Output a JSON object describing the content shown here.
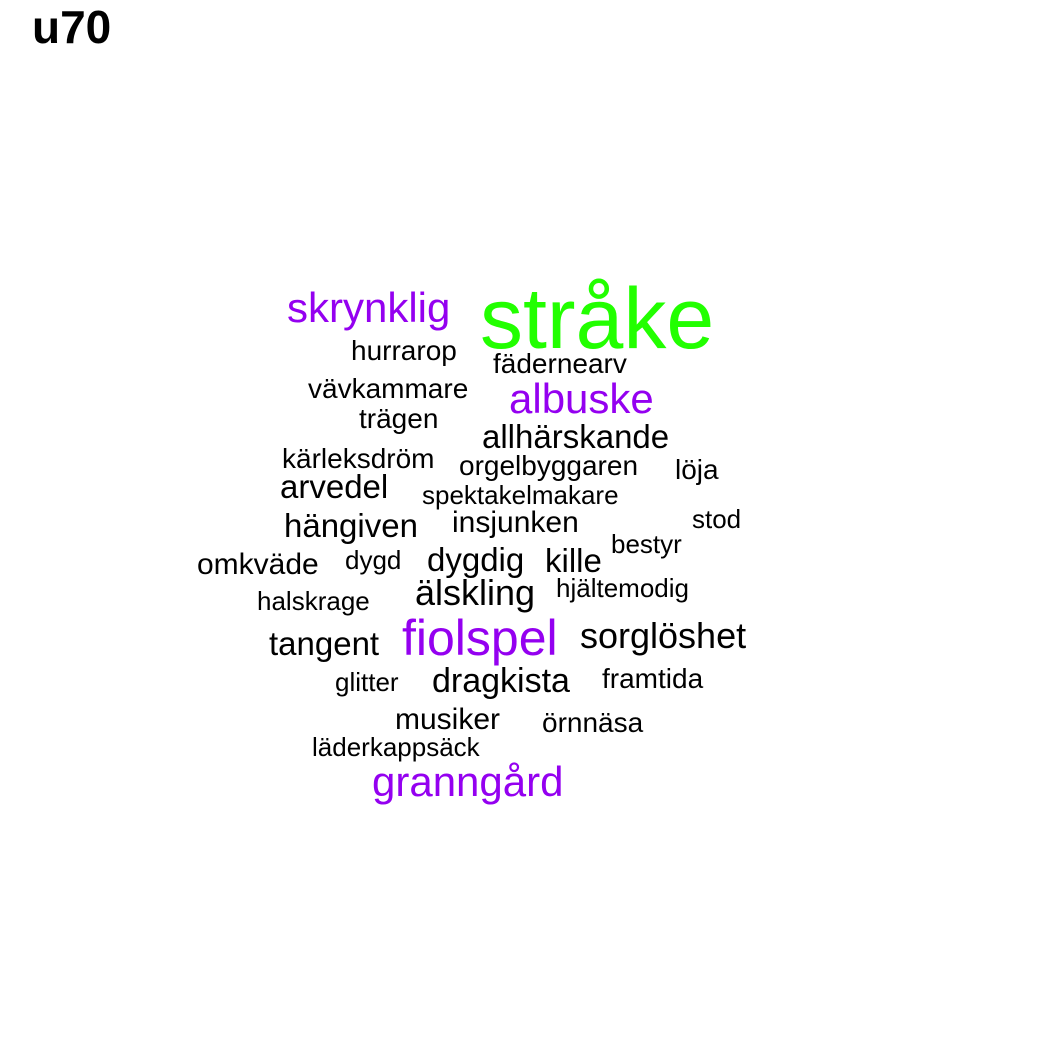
{
  "title": "u70",
  "colors": {
    "green": "#22ff00",
    "purple": "#9400f0",
    "black": "#000000"
  },
  "words": [
    {
      "text": "stråke",
      "color": "green"
    },
    {
      "text": "skrynklig",
      "color": "purple"
    },
    {
      "text": "hurrarop",
      "color": "black"
    },
    {
      "text": "fädernearv",
      "color": "black"
    },
    {
      "text": "vävkammare",
      "color": "black"
    },
    {
      "text": "albuske",
      "color": "purple"
    },
    {
      "text": "trägen",
      "color": "black"
    },
    {
      "text": "allhärskande",
      "color": "black"
    },
    {
      "text": "kärleksdröm",
      "color": "black"
    },
    {
      "text": "orgelbyggaren",
      "color": "black"
    },
    {
      "text": "löja",
      "color": "black"
    },
    {
      "text": "arvedel",
      "color": "black"
    },
    {
      "text": "spektakelmakare",
      "color": "black"
    },
    {
      "text": "hängiven",
      "color": "black"
    },
    {
      "text": "insjunken",
      "color": "black"
    },
    {
      "text": "stod",
      "color": "black"
    },
    {
      "text": "bestyr",
      "color": "black"
    },
    {
      "text": "omkväde",
      "color": "black"
    },
    {
      "text": "dygd",
      "color": "black"
    },
    {
      "text": "dygdig",
      "color": "black"
    },
    {
      "text": "kille",
      "color": "black"
    },
    {
      "text": "älskling",
      "color": "black"
    },
    {
      "text": "hjältemodig",
      "color": "black"
    },
    {
      "text": "halskrage",
      "color": "black"
    },
    {
      "text": "tangent",
      "color": "black"
    },
    {
      "text": "fiolspel",
      "color": "purple"
    },
    {
      "text": "sorglöshet",
      "color": "black"
    },
    {
      "text": "glitter",
      "color": "black"
    },
    {
      "text": "dragkista",
      "color": "black"
    },
    {
      "text": "framtida",
      "color": "black"
    },
    {
      "text": "musiker",
      "color": "black"
    },
    {
      "text": "örnnäsa",
      "color": "black"
    },
    {
      "text": "läderkappsäck",
      "color": "black"
    },
    {
      "text": "granngård",
      "color": "purple"
    }
  ]
}
